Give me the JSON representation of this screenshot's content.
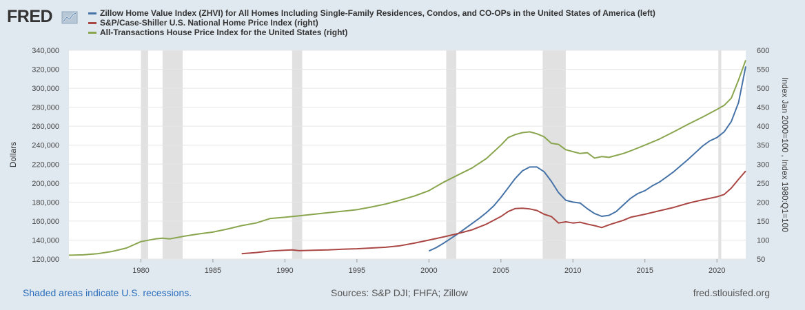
{
  "brand": {
    "name": "FRED",
    "icon": "fred-chart-icon"
  },
  "colors": {
    "background": "#e1e9f0",
    "plot_background": "#ffffff",
    "recession": "#e1e1e1",
    "zillow": "#4572a7",
    "case_shiller": "#aa4643",
    "fhfa": "#89a54e",
    "footnote_link": "#2a6ebb"
  },
  "footer": {
    "note": "Shaded areas indicate U.S. recessions.",
    "sources": "Sources: S&P DJI; FHFA; Zillow",
    "url": "fred.stlouisfed.org"
  },
  "chart_data": {
    "type": "line",
    "xlabel": "",
    "ylabel_left": "Dollars",
    "ylabel_right": "Index Jan 2000=100 , Index 1980:Q1=100",
    "xlim": [
      1975.0,
      2022.0
    ],
    "ylim_left": [
      120000,
      340000
    ],
    "ylim_right": [
      50,
      600
    ],
    "x_ticks": [
      1980,
      1985,
      1990,
      1995,
      2000,
      2005,
      2010,
      2015,
      2020
    ],
    "y_ticks_left": [
      "120,000",
      "140,000",
      "160,000",
      "180,000",
      "200,000",
      "220,000",
      "240,000",
      "260,000",
      "280,000",
      "300,000",
      "320,000",
      "340,000"
    ],
    "y_ticks_right": [
      "50",
      "100",
      "150",
      "200",
      "250",
      "300",
      "350",
      "400",
      "450",
      "500",
      "550",
      "600"
    ],
    "grid": "horizontal",
    "legend_position": "top-left",
    "recessions": [
      [
        1980.0,
        1980.5
      ],
      [
        1981.5,
        1982.9
      ],
      [
        1990.5,
        1991.2
      ],
      [
        2001.2,
        2001.9
      ],
      [
        2007.9,
        2009.5
      ],
      [
        2020.1,
        2020.3
      ]
    ],
    "series": [
      {
        "name": "Zillow Home Value Index (ZHVI) for All Homes Including Single-Family Residences, Condos, and CO-OPs in the United States of America (left)",
        "axis": "left",
        "color": "#4572a7",
        "x": [
          2000.0,
          2000.5,
          2001.0,
          2001.5,
          2002.0,
          2002.5,
          2003.0,
          2003.5,
          2004.0,
          2004.5,
          2005.0,
          2005.5,
          2006.0,
          2006.5,
          2007.0,
          2007.5,
          2008.0,
          2008.5,
          2009.0,
          2009.5,
          2010.0,
          2010.5,
          2011.0,
          2011.5,
          2012.0,
          2012.5,
          2013.0,
          2013.5,
          2014.0,
          2014.5,
          2015.0,
          2015.5,
          2016.0,
          2016.5,
          2017.0,
          2017.5,
          2018.0,
          2018.5,
          2019.0,
          2019.5,
          2020.0,
          2020.5,
          2021.0,
          2021.5,
          2022.0
        ],
        "values": [
          128500,
          132000,
          136500,
          141500,
          146500,
          152000,
          157500,
          163000,
          169000,
          176000,
          185000,
          195000,
          205000,
          213000,
          217000,
          217000,
          212000,
          202000,
          190000,
          182000,
          180000,
          179000,
          173000,
          168000,
          165000,
          166000,
          170000,
          177000,
          184000,
          189000,
          192000,
          197000,
          201000,
          206500,
          212000,
          218500,
          225000,
          232000,
          239000,
          244500,
          248000,
          254000,
          265000,
          285000,
          323000
        ]
      },
      {
        "name": "S&P/Case-Shiller U.S. National Home Price Index (right)",
        "axis": "right",
        "color": "#aa4643",
        "x": [
          1987.0,
          1988.0,
          1989.0,
          1990.0,
          1990.5,
          1991.0,
          1992.0,
          1993.0,
          1994.0,
          1995.0,
          1996.0,
          1997.0,
          1998.0,
          1999.0,
          2000.0,
          2001.0,
          2002.0,
          2003.0,
          2004.0,
          2005.0,
          2005.5,
          2006.0,
          2006.5,
          2007.0,
          2007.5,
          2008.0,
          2008.5,
          2009.0,
          2009.5,
          2010.0,
          2010.5,
          2011.0,
          2011.5,
          2012.0,
          2012.5,
          2013.0,
          2013.5,
          2014.0,
          2015.0,
          2016.0,
          2017.0,
          2018.0,
          2019.0,
          2020.0,
          2020.5,
          2021.0,
          2021.5,
          2022.0
        ],
        "values": [
          64,
          67,
          71,
          73,
          74,
          72,
          73,
          74,
          76,
          77,
          79,
          81,
          85,
          92,
          100,
          108,
          117,
          127,
          142,
          162,
          175,
          183,
          184,
          182,
          178,
          168,
          162,
          145,
          148,
          145,
          147,
          142,
          138,
          133,
          140,
          146,
          152,
          160,
          168,
          177,
          186,
          197,
          206,
          214,
          220,
          237,
          260,
          282
        ]
      },
      {
        "name": "All-Transactions House Price Index for the United States (right)",
        "axis": "right",
        "color": "#89a54e",
        "x": [
          1975.0,
          1976.0,
          1977.0,
          1978.0,
          1979.0,
          1980.0,
          1981.0,
          1981.5,
          1982.0,
          1983.0,
          1984.0,
          1985.0,
          1986.0,
          1987.0,
          1988.0,
          1989.0,
          1990.0,
          1991.0,
          1992.0,
          1993.0,
          1994.0,
          1995.0,
          1996.0,
          1997.0,
          1998.0,
          1999.0,
          2000.0,
          2001.0,
          2002.0,
          2003.0,
          2004.0,
          2005.0,
          2005.5,
          2006.0,
          2006.5,
          2007.0,
          2007.5,
          2008.0,
          2008.5,
          2009.0,
          2009.5,
          2010.0,
          2010.5,
          2011.0,
          2011.5,
          2012.0,
          2012.5,
          2013.0,
          2013.5,
          2014.0,
          2015.0,
          2016.0,
          2017.0,
          2018.0,
          2019.0,
          2020.0,
          2020.5,
          2021.0,
          2021.5,
          2022.0
        ],
        "values": [
          60,
          61,
          64,
          70,
          79,
          96,
          103,
          105,
          103,
          110,
          116,
          121,
          129,
          138,
          145,
          157,
          160,
          164,
          168,
          172,
          176,
          180,
          187,
          195,
          205,
          216,
          230,
          252,
          271,
          290,
          315,
          350,
          370,
          378,
          383,
          385,
          380,
          372,
          355,
          352,
          338,
          333,
          328,
          330,
          316,
          320,
          318,
          323,
          328,
          335,
          350,
          366,
          385,
          405,
          424,
          444,
          455,
          474,
          522,
          574
        ]
      }
    ]
  }
}
